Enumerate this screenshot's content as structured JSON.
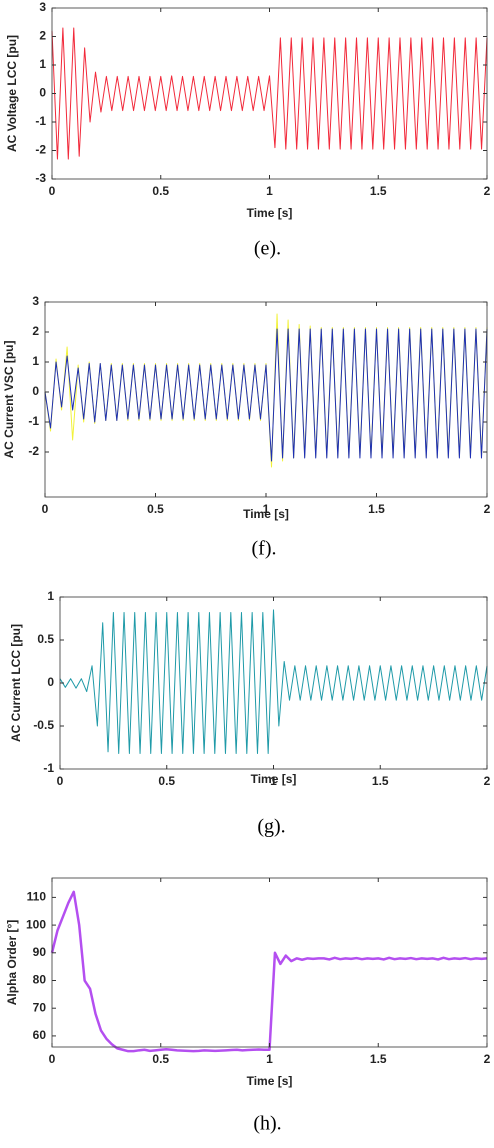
{
  "chart_data": [
    {
      "type": "line",
      "xlabel": "Time [s]",
      "ylabel": "AC Voltage LCC [pu]",
      "caption": "(e).",
      "xlim": [
        0,
        2
      ],
      "xticks": [
        0,
        0.5,
        1,
        1.5,
        2
      ],
      "ylim": [
        -3,
        3
      ],
      "yticks": [
        -3,
        -2,
        -1,
        0,
        1,
        2,
        3
      ],
      "x": [
        0,
        0.025,
        0.05,
        0.075,
        0.1,
        0.125,
        0.15,
        0.175,
        0.2,
        0.225,
        0.25,
        0.275,
        0.3,
        0.325,
        0.35,
        0.375,
        0.4,
        0.425,
        0.45,
        0.475,
        0.5,
        0.525,
        0.55,
        0.575,
        0.6,
        0.625,
        0.65,
        0.675,
        0.7,
        0.725,
        0.75,
        0.775,
        0.8,
        0.825,
        0.85,
        0.875,
        0.9,
        0.925,
        0.95,
        0.975,
        1,
        1.025,
        1.05,
        1.075,
        1.1,
        1.125,
        1.15,
        1.175,
        1.2,
        1.225,
        1.25,
        1.275,
        1.3,
        1.325,
        1.35,
        1.375,
        1.4,
        1.425,
        1.45,
        1.475,
        1.5,
        1.525,
        1.55,
        1.575,
        1.6,
        1.625,
        1.65,
        1.675,
        1.7,
        1.725,
        1.75,
        1.775,
        1.8,
        1.825,
        1.85,
        1.875,
        1.9,
        1.925,
        1.95,
        1.975,
        2
      ],
      "series": [
        {
          "color": "#f2293a",
          "values": [
            2.2,
            -2.3,
            2.3,
            -2.3,
            2.3,
            -2.2,
            1.6,
            -1.0,
            0.75,
            -0.65,
            0.6,
            -0.6,
            0.6,
            -0.6,
            0.6,
            -0.6,
            0.6,
            -0.6,
            0.6,
            -0.6,
            0.6,
            -0.6,
            0.62,
            -0.6,
            0.6,
            -0.6,
            0.6,
            -0.6,
            0.6,
            -0.6,
            0.6,
            -0.6,
            0.6,
            -0.6,
            0.6,
            -0.6,
            0.6,
            -0.6,
            0.6,
            -0.6,
            0.62,
            -1.9,
            1.95,
            -1.95,
            1.95,
            -1.95,
            1.95,
            -1.95,
            1.95,
            -1.95,
            1.95,
            -1.95,
            1.95,
            -1.95,
            1.95,
            -1.95,
            1.95,
            -1.95,
            1.95,
            -1.95,
            1.95,
            -1.95,
            1.95,
            -1.95,
            1.95,
            -1.95,
            1.95,
            -1.95,
            1.95,
            -1.95,
            1.95,
            -1.95,
            1.95,
            -1.95,
            1.95,
            -1.95,
            1.95,
            -1.95,
            1.95,
            -1.95,
            1.95
          ]
        }
      ]
    },
    {
      "type": "line",
      "xlabel": "Time [s]",
      "ylabel": "AC Current VSC [pu]",
      "caption": "(f).",
      "xlim": [
        0,
        2
      ],
      "xticks": [
        0,
        0.5,
        1,
        1.5,
        2
      ],
      "ylim": [
        -3.5,
        3
      ],
      "yticks": [
        -2,
        -1,
        0,
        1,
        2,
        3
      ],
      "x": [
        0,
        0.025,
        0.05,
        0.075,
        0.1,
        0.125,
        0.15,
        0.175,
        0.2,
        0.225,
        0.25,
        0.275,
        0.3,
        0.325,
        0.35,
        0.375,
        0.4,
        0.425,
        0.45,
        0.475,
        0.5,
        0.525,
        0.55,
        0.575,
        0.6,
        0.625,
        0.65,
        0.675,
        0.7,
        0.725,
        0.75,
        0.775,
        0.8,
        0.825,
        0.85,
        0.875,
        0.9,
        0.925,
        0.95,
        0.975,
        1,
        1.025,
        1.05,
        1.075,
        1.1,
        1.125,
        1.15,
        1.175,
        1.2,
        1.225,
        1.25,
        1.275,
        1.3,
        1.325,
        1.35,
        1.375,
        1.4,
        1.425,
        1.45,
        1.475,
        1.5,
        1.525,
        1.55,
        1.575,
        1.6,
        1.625,
        1.65,
        1.675,
        1.7,
        1.725,
        1.75,
        1.775,
        1.8,
        1.825,
        1.85,
        1.875,
        1.9,
        1.925,
        1.95,
        1.975,
        2
      ],
      "series": [
        {
          "color": "#f2f23a",
          "values": [
            0,
            -1.3,
            1.1,
            -0.6,
            1.5,
            -1.6,
            0.9,
            -1.0,
            1.0,
            -1.05,
            0.95,
            -0.95,
            0.95,
            -0.95,
            0.95,
            -0.95,
            0.95,
            -0.95,
            0.95,
            -0.95,
            0.95,
            -0.95,
            0.95,
            -0.95,
            0.95,
            -0.95,
            0.95,
            -0.95,
            0.95,
            -0.95,
            0.95,
            -0.95,
            0.95,
            -0.95,
            0.95,
            -0.95,
            0.95,
            -0.95,
            0.95,
            -0.95,
            0.95,
            -2.5,
            2.6,
            -2.3,
            2.4,
            -2.2,
            2.25,
            -2.15,
            2.2,
            -2.15,
            2.15,
            -2.15,
            2.15,
            -2.15,
            2.15,
            -2.15,
            2.15,
            -2.15,
            2.15,
            -2.15,
            2.15,
            -2.15,
            2.15,
            -2.15,
            2.15,
            -2.15,
            2.15,
            -2.15,
            2.15,
            -2.15,
            2.15,
            -2.15,
            2.15,
            -2.15,
            2.15,
            -2.15,
            2.15,
            -2.15,
            2.15,
            -2.15,
            2.15
          ]
        },
        {
          "color": "#1d2fb5",
          "values": [
            0,
            -1.2,
            1.0,
            -0.5,
            1.2,
            -0.6,
            0.8,
            -0.9,
            0.95,
            -1.0,
            0.95,
            -0.95,
            0.9,
            -0.95,
            0.9,
            -0.9,
            0.9,
            -0.9,
            0.9,
            -0.9,
            0.9,
            -0.9,
            0.9,
            -0.9,
            0.9,
            -0.9,
            0.9,
            -0.9,
            0.9,
            -0.9,
            0.9,
            -0.9,
            0.9,
            -0.9,
            0.9,
            -0.9,
            0.9,
            -0.9,
            0.9,
            -0.9,
            0.9,
            -2.3,
            2.1,
            -2.2,
            2.1,
            -2.2,
            2.1,
            -2.2,
            2.1,
            -2.2,
            2.1,
            -2.2,
            2.1,
            -2.2,
            2.1,
            -2.2,
            2.1,
            -2.2,
            2.1,
            -2.2,
            2.1,
            -2.2,
            2.1,
            -2.2,
            2.1,
            -2.2,
            2.1,
            -2.2,
            2.1,
            -2.2,
            2.1,
            -2.2,
            2.1,
            -2.2,
            2.1,
            -2.2,
            2.1,
            -2.2,
            2.1,
            -2.2,
            2.1
          ]
        }
      ]
    },
    {
      "type": "line",
      "xlabel": "Time [s]",
      "ylabel": "AC Current LCC [pu]",
      "caption": "(g).",
      "xlim": [
        0,
        2
      ],
      "xticks": [
        0,
        0.5,
        1,
        1.5,
        2
      ],
      "ylim": [
        -1,
        1
      ],
      "yticks": [
        -1,
        -0.5,
        0,
        0.5,
        1
      ],
      "x": [
        0,
        0.025,
        0.05,
        0.075,
        0.1,
        0.125,
        0.15,
        0.175,
        0.2,
        0.225,
        0.25,
        0.275,
        0.3,
        0.325,
        0.35,
        0.375,
        0.4,
        0.425,
        0.45,
        0.475,
        0.5,
        0.525,
        0.55,
        0.575,
        0.6,
        0.625,
        0.65,
        0.675,
        0.7,
        0.725,
        0.75,
        0.775,
        0.8,
        0.825,
        0.85,
        0.875,
        0.9,
        0.925,
        0.95,
        0.975,
        1,
        1.025,
        1.05,
        1.075,
        1.1,
        1.125,
        1.15,
        1.175,
        1.2,
        1.225,
        1.25,
        1.275,
        1.3,
        1.325,
        1.35,
        1.375,
        1.4,
        1.425,
        1.45,
        1.475,
        1.5,
        1.525,
        1.55,
        1.575,
        1.6,
        1.625,
        1.65,
        1.675,
        1.7,
        1.725,
        1.75,
        1.775,
        1.8,
        1.825,
        1.85,
        1.875,
        1.9,
        1.925,
        1.95,
        1.975,
        2
      ],
      "series": [
        {
          "color": "#1f9aa8",
          "values": [
            0.05,
            -0.05,
            0.05,
            -0.06,
            0.05,
            -0.1,
            0.2,
            -0.5,
            0.7,
            -0.8,
            0.82,
            -0.82,
            0.82,
            -0.82,
            0.82,
            -0.82,
            0.82,
            -0.82,
            0.82,
            -0.82,
            0.82,
            -0.82,
            0.82,
            -0.82,
            0.82,
            -0.82,
            0.82,
            -0.82,
            0.82,
            -0.82,
            0.82,
            -0.82,
            0.82,
            -0.82,
            0.82,
            -0.82,
            0.82,
            -0.82,
            0.82,
            -0.82,
            0.85,
            -0.5,
            0.25,
            -0.2,
            0.2,
            -0.2,
            0.2,
            -0.2,
            0.2,
            -0.2,
            0.2,
            -0.2,
            0.2,
            -0.2,
            0.2,
            -0.2,
            0.2,
            -0.2,
            0.2,
            -0.2,
            0.2,
            -0.2,
            0.2,
            -0.2,
            0.2,
            -0.2,
            0.2,
            -0.2,
            0.2,
            -0.2,
            0.2,
            -0.2,
            0.2,
            -0.2,
            0.2,
            -0.2,
            0.2,
            -0.2,
            0.2,
            -0.2,
            0.2
          ]
        }
      ]
    },
    {
      "type": "line",
      "xlabel": "Time [s]",
      "ylabel": "Alpha Order [°]",
      "caption": "(h).",
      "xlim": [
        0,
        2
      ],
      "xticks": [
        0,
        0.5,
        1,
        1.5,
        2
      ],
      "ylim": [
        56,
        117
      ],
      "yticks": [
        60,
        70,
        80,
        90,
        100,
        110
      ],
      "x": [
        0,
        0.025,
        0.05,
        0.075,
        0.1,
        0.125,
        0.15,
        0.175,
        0.2,
        0.225,
        0.25,
        0.275,
        0.3,
        0.325,
        0.35,
        0.375,
        0.4,
        0.425,
        0.45,
        0.475,
        0.5,
        0.525,
        0.55,
        0.575,
        0.6,
        0.625,
        0.65,
        0.675,
        0.7,
        0.725,
        0.75,
        0.775,
        0.8,
        0.825,
        0.85,
        0.875,
        0.9,
        0.925,
        0.95,
        0.975,
        1,
        1.025,
        1.05,
        1.075,
        1.1,
        1.125,
        1.15,
        1.175,
        1.2,
        1.225,
        1.25,
        1.275,
        1.3,
        1.325,
        1.35,
        1.375,
        1.4,
        1.425,
        1.45,
        1.475,
        1.5,
        1.525,
        1.55,
        1.575,
        1.6,
        1.625,
        1.65,
        1.675,
        1.7,
        1.725,
        1.75,
        1.775,
        1.8,
        1.825,
        1.85,
        1.875,
        1.9,
        1.925,
        1.95,
        1.975,
        2
      ],
      "series": [
        {
          "color": "#b44ff0",
          "values": [
            90,
            98,
            103,
            108,
            112,
            100,
            80,
            77,
            68,
            62,
            59,
            57,
            55.5,
            55,
            54.5,
            54.5,
            54.8,
            55,
            54.6,
            54.8,
            55,
            55.2,
            55,
            54.8,
            54.7,
            54.6,
            54.5,
            54.6,
            54.8,
            54.7,
            54.6,
            54.7,
            54.8,
            54.9,
            55,
            54.8,
            54.9,
            55,
            55.1,
            55,
            55,
            90,
            86,
            89,
            87,
            88,
            87.5,
            88,
            87.8,
            88,
            88,
            87.6,
            88.2,
            87.7,
            88,
            87.8,
            88.1,
            87.7,
            88,
            87.8,
            88,
            87.6,
            88.2,
            87.7,
            88,
            87.8,
            88.1,
            87.7,
            88,
            87.8,
            88,
            87.6,
            88.2,
            87.7,
            88,
            87.8,
            88.1,
            87.7,
            88,
            87.8,
            88
          ]
        }
      ]
    }
  ]
}
